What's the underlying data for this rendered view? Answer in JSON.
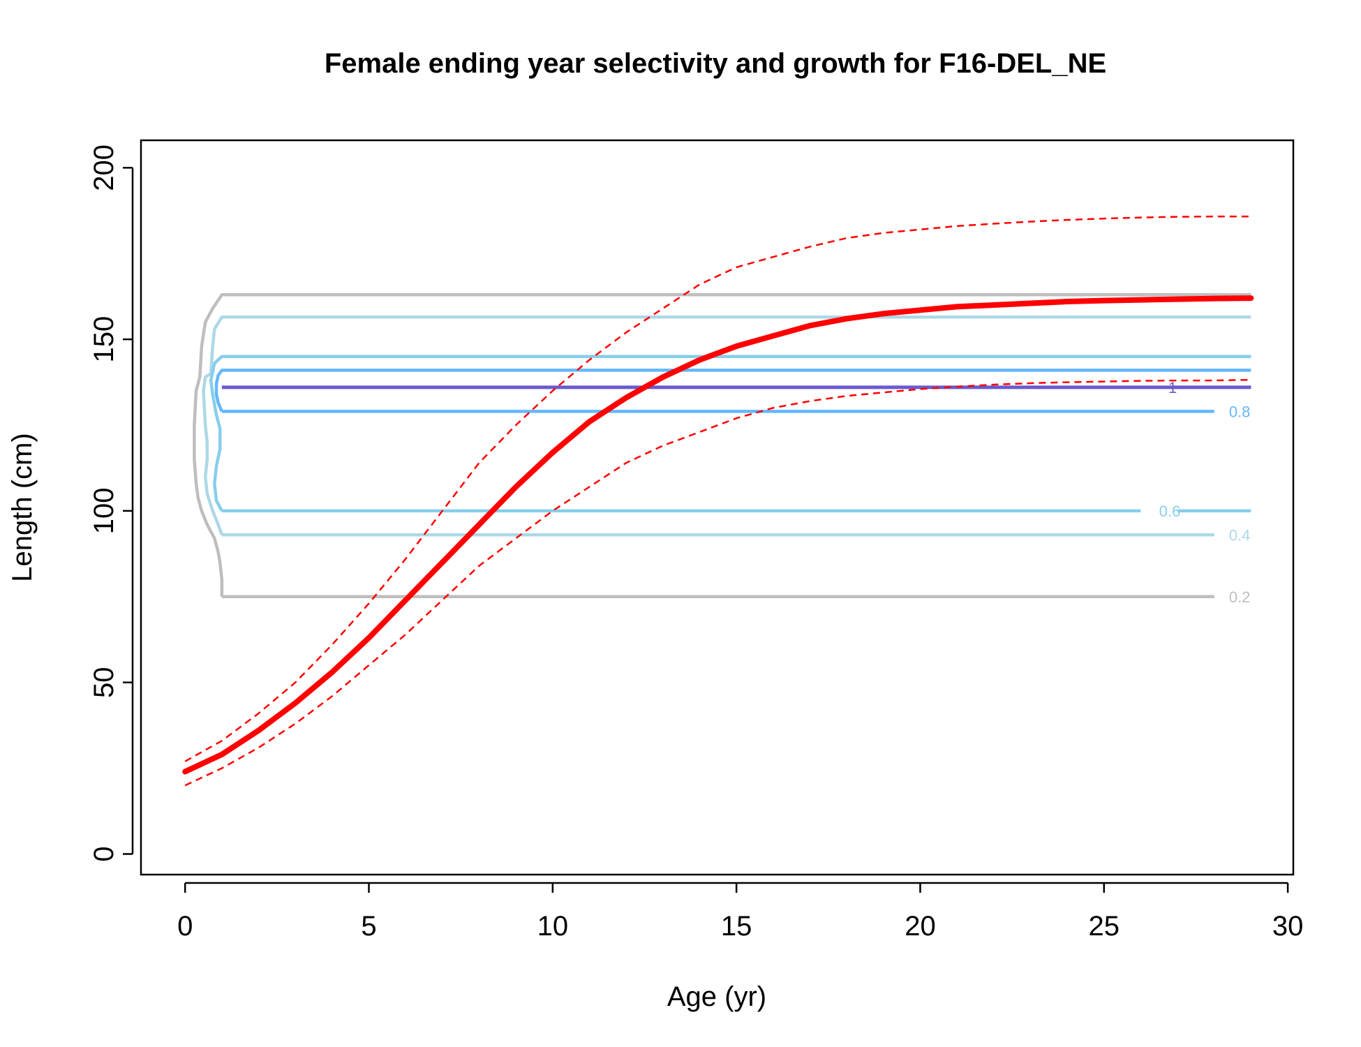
{
  "chart_data": {
    "type": "line",
    "title": "Female ending year selectivity and growth for F16-DEL_NE",
    "xlabel": "Age (yr)",
    "ylabel": "Length (cm)",
    "xlim": [
      -1.2,
      30.15
    ],
    "ylim": [
      -6,
      208
    ],
    "grid": false,
    "x_ticks": [
      0,
      5,
      10,
      15,
      20,
      25,
      30
    ],
    "y_ticks": [
      0,
      50,
      100,
      150,
      200
    ],
    "growth": {
      "color": "#ff0000",
      "mean": {
        "x": [
          0,
          1,
          2,
          3,
          4,
          5,
          6,
          7,
          8,
          9,
          10,
          11,
          12,
          13,
          14,
          15,
          16,
          17,
          18,
          19,
          20,
          21,
          22,
          23,
          24,
          25,
          26,
          27,
          28,
          29
        ],
        "y": [
          24,
          29,
          36,
          44,
          53,
          63,
          74,
          85,
          96,
          107,
          117,
          126,
          133,
          139,
          144,
          148,
          151,
          154,
          156,
          157.5,
          158.5,
          159.5,
          160,
          160.5,
          161,
          161.3,
          161.5,
          161.7,
          161.9,
          162
        ]
      },
      "upper": {
        "x": [
          0,
          1,
          2,
          3,
          4,
          5,
          6,
          7,
          8,
          9,
          10,
          11,
          12,
          13,
          14,
          15,
          16,
          17,
          18,
          19,
          20,
          21,
          22,
          23,
          24,
          25,
          26,
          27,
          28,
          29
        ],
        "y": [
          27,
          33,
          41,
          50,
          61,
          73,
          86,
          100,
          114,
          125,
          135,
          144,
          152,
          159,
          166,
          171,
          174,
          177,
          179.5,
          181,
          182,
          183,
          183.7,
          184.3,
          184.8,
          185.2,
          185.5,
          185.7,
          185.8,
          185.8
        ]
      },
      "lower": {
        "x": [
          0,
          1,
          2,
          3,
          4,
          5,
          6,
          7,
          8,
          9,
          10,
          11,
          12,
          13,
          14,
          15,
          16,
          17,
          18,
          19,
          20,
          21,
          22,
          23,
          24,
          25,
          26,
          27,
          28,
          29
        ],
        "y": [
          20,
          25,
          31,
          38,
          46,
          55,
          64,
          74,
          84,
          92,
          100,
          107,
          114,
          119,
          123,
          127,
          130,
          132,
          133.5,
          134.5,
          135.5,
          136.2,
          136.8,
          137.2,
          137.5,
          137.7,
          137.9,
          138,
          138,
          138.2
        ]
      }
    },
    "contours": [
      {
        "level": "0.2",
        "color": "#bebebe",
        "x": [
          1,
          1,
          0.95,
          0.9,
          0.8,
          0.6,
          0.45,
          0.35,
          0.3,
          0.25,
          0.25,
          0.3,
          0.4,
          0.45,
          0.55,
          0.75,
          1,
          29
        ],
        "y": [
          75,
          80,
          85,
          88,
          92,
          96,
          100,
          104,
          108,
          115,
          125,
          135,
          139,
          148,
          155,
          159,
          163,
          163
        ],
        "x_end": 28,
        "label_x": 28.4,
        "label_y": 75
      },
      {
        "level": "0.4",
        "color": "#add8e6",
        "x": [
          1,
          0.9,
          0.75,
          0.6,
          0.55,
          0.6,
          0.6,
          0.55,
          0.5,
          0.55,
          0.7,
          0.75,
          0.8,
          1,
          29
        ],
        "y": [
          93,
          96,
          100,
          105,
          110,
          115,
          120,
          125,
          135,
          139,
          140,
          148,
          153,
          156.5,
          156.5
        ],
        "x_end": 28,
        "label_x": 28.4,
        "label_y": 93
      },
      {
        "level": "0.6",
        "color": "#87ceeb",
        "x": [
          1,
          0.85,
          0.8,
          0.85,
          0.95,
          0.95,
          0.85,
          0.75,
          0.7,
          0.8,
          1,
          29
        ],
        "y": [
          100,
          103,
          108,
          113,
          118,
          124,
          128,
          134,
          138,
          143,
          145,
          145
        ],
        "x_end": 26,
        "gap_to": 27,
        "label_x": 26.5,
        "label_y": 100
      },
      {
        "level": "0.8",
        "color": "#63b8ff",
        "x": [
          1,
          0.9,
          0.85,
          0.85,
          0.9,
          1,
          29
        ],
        "y": [
          129,
          131.5,
          134,
          137,
          139.5,
          141,
          141
        ],
        "bottom_end": 28,
        "label_x": 28.4,
        "label_y": 129
      },
      {
        "level": "1",
        "color": "#6a5acd",
        "x": [
          1,
          29
        ],
        "y": [
          136,
          136
        ],
        "label_x": 26.75,
        "label_y": 136
      }
    ]
  }
}
